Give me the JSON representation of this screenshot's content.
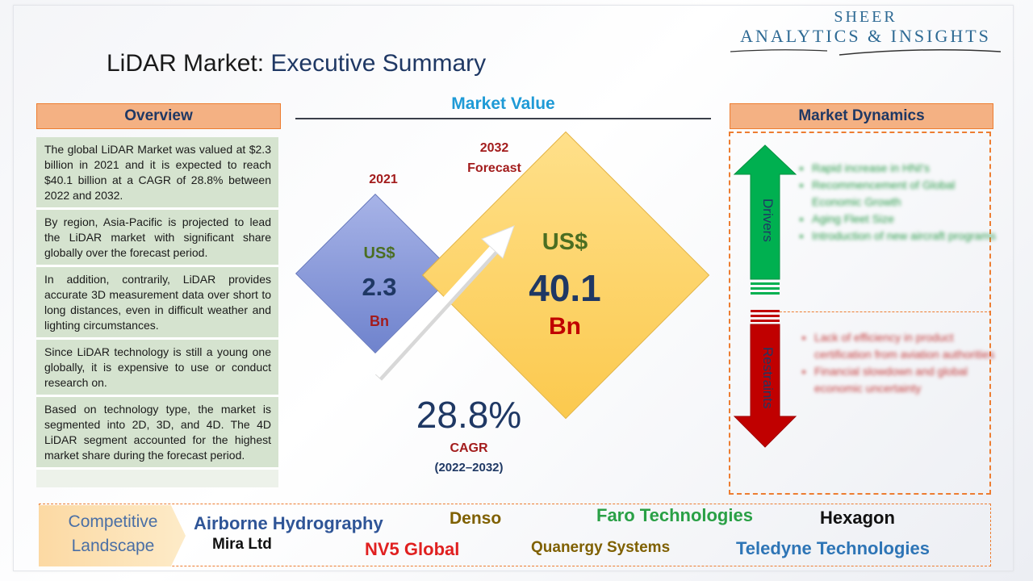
{
  "header": {
    "title_part1": "LiDAR Market: ",
    "title_part2": "Executive Summary",
    "logo_line1": "SHEER",
    "logo_line2": "ANALYTICS & INSIGHTS"
  },
  "overview": {
    "title": "Overview",
    "items": [
      "The global LiDAR Market was valued at $2.3 billion in 2021 and it is expected to reach $40.1 billion at a CAGR of 28.8% between 2022 and 2032.",
      "By region, Asia-Pacific is projected to lead the LiDAR market with significant share globally over the forecast period.",
      "In addition, contrarily, LiDAR provides accurate 3D measurement data over short to long distances, even in difficult weather and lighting circumstances.",
      "Since LiDAR technology is still a young one globally, it is expensive to use or conduct research on.",
      "Based on technology type, the market is segmented into 2D, 3D, and 4D. The 4D LiDAR segment accounted for the highest market share during the forecast period."
    ]
  },
  "market_value": {
    "title": "Market Value",
    "year_2021": "2021",
    "year_2032_line1": "2032",
    "year_2032_line2": "Forecast",
    "small_currency": "US$",
    "small_value": "2.3",
    "small_unit": "Bn",
    "big_currency": "US$",
    "big_value": "40.1",
    "big_unit": "Bn",
    "cagr_value": "28.8%",
    "cagr_label": "CAGR",
    "cagr_range": "(2022–2032)"
  },
  "market_dynamics": {
    "title": "Market Dynamics",
    "drivers_label": "Drivers",
    "restraints_label": "Restraints",
    "drivers": [
      "Rapid increase in HNI's",
      "Recommencement of Global Economic Growth",
      "Aging Fleet Size",
      "Introduction of new aircraft programs"
    ],
    "restraints": [
      "Lack of efficiency in product certification from aviation authorities",
      "Financial slowdown and global economic uncertainty"
    ]
  },
  "competitive_landscape": {
    "label_line1": "Competitive",
    "label_line2": "Landscape",
    "companies": [
      "Airborne Hydrography",
      "Mira Ltd",
      "Denso",
      "NV5 Global",
      "Faro Technologies",
      "Quanergy Systems",
      "Hexagon",
      "Teledyne Technologies"
    ]
  },
  "colors": {
    "accent_orange": "#ed7d31",
    "header_fill": "#f4b183",
    "navy": "#1f3864",
    "driver_green": "#00b050",
    "restraint_red": "#c00000",
    "value_blue": "#1e9ad6"
  }
}
